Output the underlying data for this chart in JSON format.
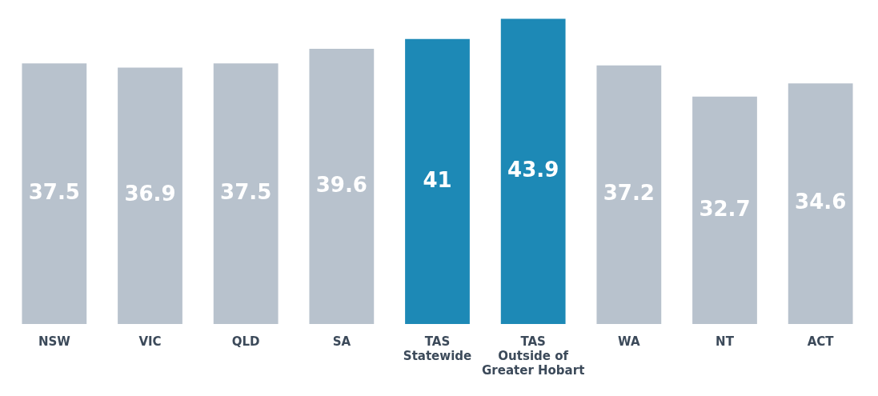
{
  "chart_data": {
    "type": "bar",
    "categories": [
      "NSW",
      "VIC",
      "QLD",
      "SA",
      "TAS\nStatewide",
      "TAS\nOutside of\nGreater Hobart",
      "WA",
      "NT",
      "ACT"
    ],
    "values": [
      37.5,
      36.9,
      37.5,
      39.6,
      41,
      43.9,
      37.2,
      32.7,
      34.6
    ],
    "colors": [
      "#b8c2cd",
      "#b8c2cd",
      "#b8c2cd",
      "#b8c2cd",
      "#1d89b6",
      "#1d89b6",
      "#b8c2cd",
      "#b8c2cd",
      "#b8c2cd"
    ],
    "data_labels": true,
    "grid": false,
    "legend": false,
    "tick_labels": "x"
  }
}
